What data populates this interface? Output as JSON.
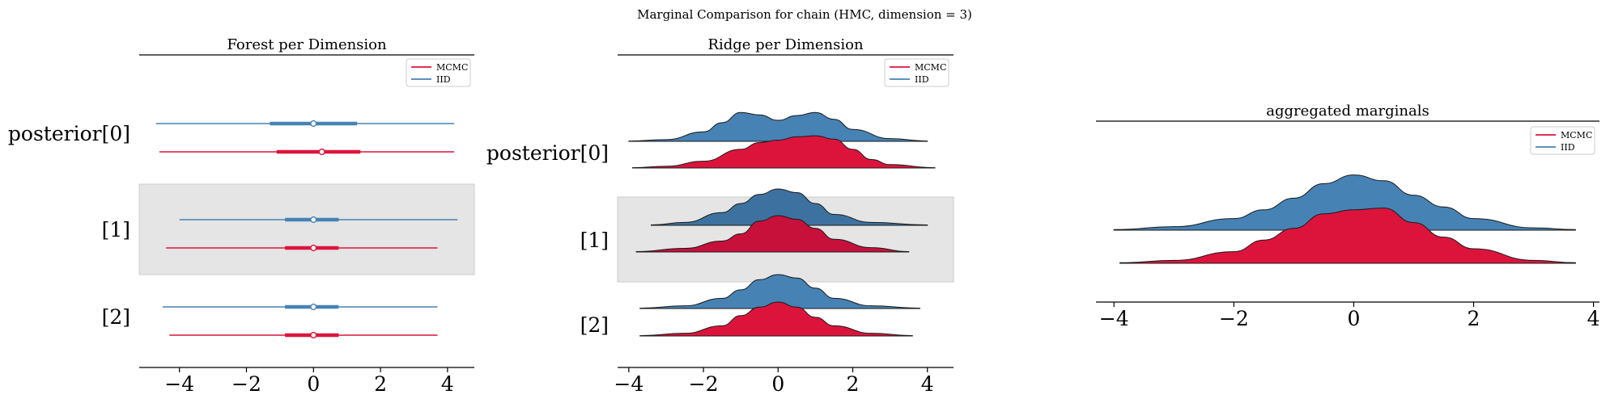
{
  "suptitle": "Marginal Comparison for chain (HMC, dimension = 3)",
  "colors": {
    "mcmc": "#dc143c",
    "iid": "#4682b4",
    "band": "#e5e5e5"
  },
  "legend": {
    "mcmc": "MCMC",
    "iid": "IID"
  },
  "row_labels": [
    "posterior[0]",
    "[1]",
    "[2]"
  ],
  "chart_data": [
    {
      "type": "forest",
      "title": "Forest per Dimension",
      "xlim": [
        -5.2,
        4.8
      ],
      "xticks": [
        -4,
        -2,
        0,
        2,
        4
      ],
      "xtick_labels": [
        "−4",
        "−2",
        "0",
        "2",
        "4"
      ],
      "legend_position": "top-right",
      "shaded_rows": [
        1
      ],
      "rows": [
        {
          "label": "posterior[0]",
          "iid": {
            "min": -4.7,
            "q25": -1.3,
            "median": 0.0,
            "q75": 1.3,
            "max": 4.2
          },
          "mcmc": {
            "min": -4.6,
            "q25": -1.1,
            "median": 0.25,
            "q75": 1.4,
            "max": 4.2
          }
        },
        {
          "label": "[1]",
          "iid": {
            "min": -4.0,
            "q25": -0.85,
            "median": 0.0,
            "q75": 0.75,
            "max": 4.3
          },
          "mcmc": {
            "min": -4.4,
            "q25": -0.85,
            "median": 0.0,
            "q75": 0.75,
            "max": 3.7
          }
        },
        {
          "label": "[2]",
          "iid": {
            "min": -4.5,
            "q25": -0.85,
            "median": 0.0,
            "q75": 0.75,
            "max": 3.7
          },
          "mcmc": {
            "min": -4.3,
            "q25": -0.85,
            "median": 0.0,
            "q75": 0.75,
            "max": 3.7
          }
        }
      ]
    },
    {
      "type": "ridge",
      "title": "Ridge per Dimension",
      "xlim": [
        -4.3,
        4.7
      ],
      "xticks": [
        -4,
        -2,
        0,
        2,
        4
      ],
      "xtick_labels": [
        "−4",
        "−2",
        "0",
        "2",
        "4"
      ],
      "legend_position": "top-right",
      "shaded_rows": [
        1
      ],
      "rows": [
        {
          "label": "posterior[0]",
          "iid": {
            "x": [
              -4.0,
              -3.0,
              -2.0,
              -1.5,
              -1.0,
              -0.5,
              0.0,
              0.5,
              1.0,
              1.5,
              2.0,
              3.0,
              4.0
            ],
            "y": [
              0.01,
              0.05,
              0.28,
              0.55,
              0.85,
              0.78,
              0.62,
              0.76,
              0.85,
              0.65,
              0.35,
              0.08,
              0.01
            ]
          },
          "mcmc": {
            "x": [
              -3.9,
              -3.0,
              -2.0,
              -1.0,
              -0.5,
              0.0,
              0.5,
              1.0,
              1.5,
              2.0,
              2.5,
              3.0,
              4.2
            ],
            "y": [
              0.01,
              0.05,
              0.2,
              0.55,
              0.75,
              0.82,
              0.92,
              0.95,
              0.85,
              0.55,
              0.25,
              0.1,
              0.01
            ]
          }
        },
        {
          "label": "[1]",
          "iid": {
            "x": [
              -3.4,
              -2.5,
              -1.5,
              -1.0,
              -0.5,
              0.0,
              0.5,
              1.0,
              1.5,
              2.5,
              4.0
            ],
            "y": [
              0.01,
              0.08,
              0.35,
              0.6,
              0.85,
              1.0,
              0.9,
              0.6,
              0.3,
              0.08,
              0.01
            ]
          },
          "mcmc": {
            "x": [
              -3.8,
              -2.5,
              -1.5,
              -1.0,
              -0.5,
              0.0,
              0.5,
              1.0,
              1.5,
              2.5,
              3.5
            ],
            "y": [
              0.01,
              0.1,
              0.3,
              0.5,
              0.85,
              1.0,
              0.9,
              0.65,
              0.35,
              0.12,
              0.01
            ]
          }
        },
        {
          "label": "[2]",
          "iid": {
            "x": [
              -3.7,
              -2.5,
              -1.5,
              -1.0,
              -0.5,
              0.0,
              0.5,
              1.0,
              1.5,
              2.5,
              3.8
            ],
            "y": [
              0.01,
              0.08,
              0.3,
              0.55,
              0.85,
              1.0,
              0.9,
              0.6,
              0.3,
              0.08,
              0.01
            ]
          },
          "mcmc": {
            "x": [
              -3.7,
              -2.5,
              -1.5,
              -1.0,
              -0.5,
              0.0,
              0.5,
              1.0,
              1.5,
              2.5,
              3.6
            ],
            "y": [
              0.01,
              0.08,
              0.3,
              0.6,
              0.85,
              1.0,
              0.85,
              0.55,
              0.3,
              0.08,
              0.01
            ]
          }
        }
      ]
    },
    {
      "type": "ridge",
      "title": "aggregated marginals",
      "xlim": [
        -4.3,
        4.1
      ],
      "xticks": [
        -4,
        -2,
        0,
        2,
        4
      ],
      "xtick_labels": [
        "−4",
        "−2",
        "0",
        "2",
        "4"
      ],
      "legend_position": "top-right",
      "rows": [
        {
          "label": "",
          "iid": {
            "x": [
              -4.0,
              -3.0,
              -2.0,
              -1.5,
              -1.0,
              -0.5,
              0.0,
              0.5,
              1.0,
              1.5,
              2.0,
              3.0,
              3.7
            ],
            "y": [
              0.01,
              0.06,
              0.2,
              0.35,
              0.55,
              0.8,
              0.95,
              0.85,
              0.6,
              0.4,
              0.2,
              0.04,
              0.01
            ]
          },
          "mcmc": {
            "x": [
              -3.9,
              -3.0,
              -2.0,
              -1.5,
              -1.0,
              -0.5,
              0.0,
              0.5,
              1.0,
              1.5,
              2.0,
              3.0,
              3.7
            ],
            "y": [
              0.01,
              0.05,
              0.2,
              0.4,
              0.6,
              0.85,
              0.92,
              0.95,
              0.7,
              0.45,
              0.25,
              0.05,
              0.01
            ]
          }
        }
      ]
    }
  ]
}
